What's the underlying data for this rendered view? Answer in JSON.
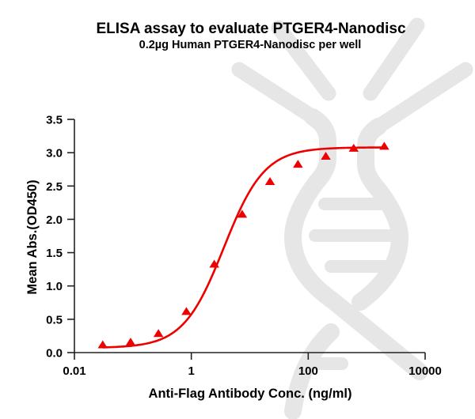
{
  "chart_data": {
    "type": "scatter",
    "title": "ELISA assay to evaluate PTGER4-Nanodisc",
    "subtitle": "0.2µg Human PTGER4-Nanodisc per well",
    "xlabel": "Anti-Flag Antibody Conc. (ng/ml)",
    "ylabel": "Mean Abs.(OD450)",
    "xscale": "log10",
    "xlim": [
      0.01,
      10000
    ],
    "ylim": [
      0,
      3.5
    ],
    "x_ticks": [
      0.01,
      1,
      100,
      10000
    ],
    "x_tick_labels": [
      "0.01",
      "1",
      "100",
      "10000"
    ],
    "y_ticks": [
      0,
      0.5,
      1.0,
      1.5,
      2.0,
      2.5,
      3.0,
      3.5
    ],
    "y_tick_labels": [
      "0.0",
      "0.5",
      "1.0",
      "1.5",
      "2.0",
      "2.5",
      "3.0",
      "3.5"
    ],
    "grid": false,
    "legend": null,
    "series": [
      {
        "name": "PTGER4-Nanodisc",
        "marker": "triangle",
        "color": "#ee0000",
        "x": [
          0.0305,
          0.0914,
          0.274,
          0.823,
          2.47,
          7.41,
          22.2,
          66.7,
          200,
          600,
          2000
        ],
        "y": [
          0.11,
          0.15,
          0.28,
          0.61,
          1.32,
          2.07,
          2.56,
          2.82,
          2.94,
          3.06,
          3.09
        ],
        "fit": {
          "model": "4PL",
          "bottom": 0.07,
          "top": 3.08,
          "ec50": 3.6,
          "hill": 1.25
        }
      }
    ]
  },
  "watermark": {
    "icon": "dna-helix-icon",
    "color": "#e6e6e6"
  }
}
